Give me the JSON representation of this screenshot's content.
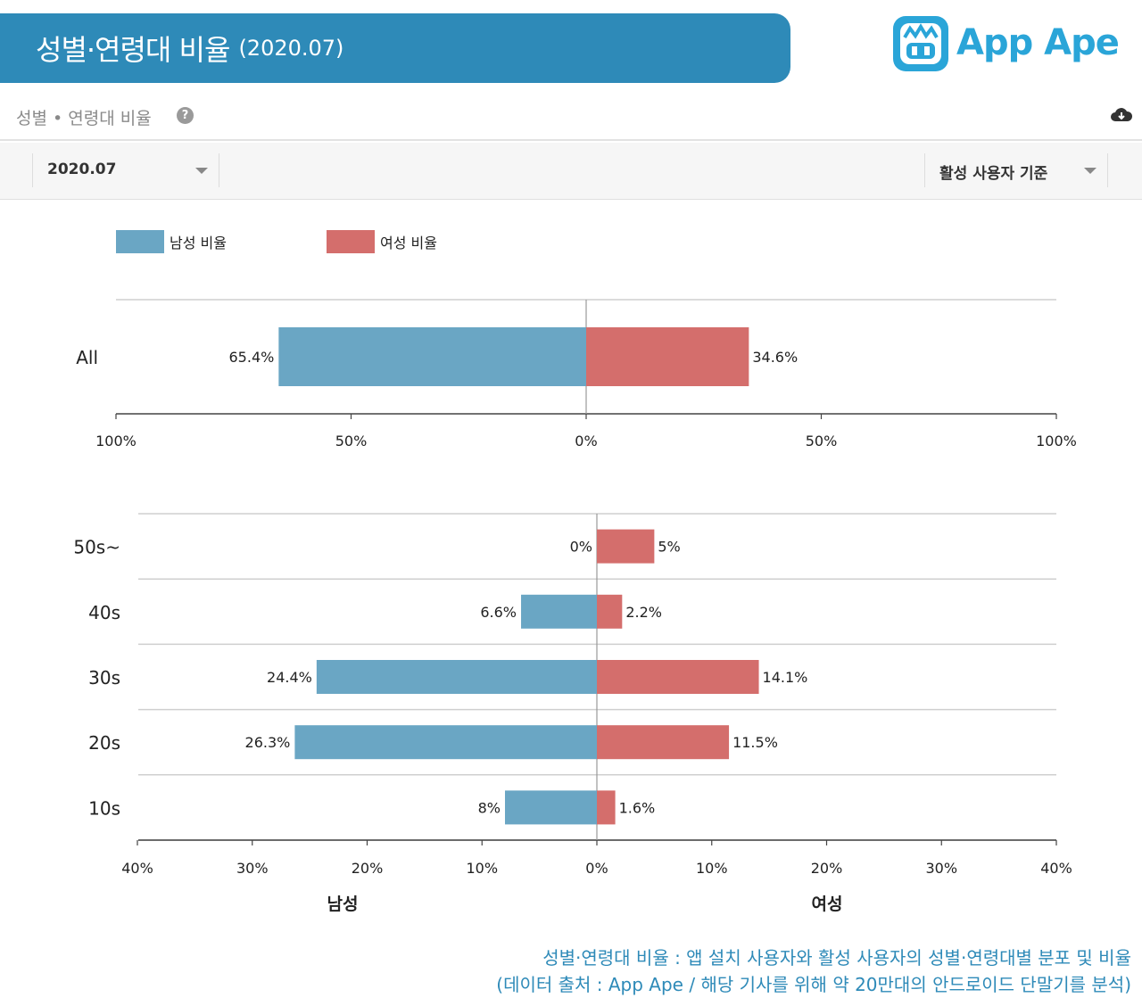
{
  "header": {
    "title": "성별·연령대 비율",
    "period": "(2020.07)"
  },
  "brand": {
    "name": "App Ape"
  },
  "section": {
    "label": "성별 • 연령대 비율",
    "help_icon": "question-circle-icon",
    "download_icon": "cloud-download-icon"
  },
  "filters": {
    "month": "2020.07",
    "basis": "활성 사용자 기준"
  },
  "legend": {
    "male": "남성 비율",
    "female": "여성 비율"
  },
  "colors": {
    "male": "#6aa6c4",
    "female": "#d46e6c",
    "accent": "#2e8ab8"
  },
  "chart_data": [
    {
      "type": "bar",
      "orientation": "horizontal-diverging",
      "categories": [
        "All"
      ],
      "series": [
        {
          "name": "남성 비율",
          "values": [
            65.4
          ],
          "labels": [
            "65.4%"
          ]
        },
        {
          "name": "여성 비율",
          "values": [
            34.6
          ],
          "labels": [
            "34.6%"
          ]
        }
      ],
      "xlim": [
        -100,
        100
      ],
      "ticks": [
        -100,
        -50,
        0,
        50,
        100
      ],
      "tick_labels": [
        "100%",
        "50%",
        "0%",
        "50%",
        "100%"
      ]
    },
    {
      "type": "bar",
      "orientation": "horizontal-diverging",
      "categories": [
        "50s~",
        "40s",
        "30s",
        "20s",
        "10s"
      ],
      "series": [
        {
          "name": "남성 비율",
          "values": [
            0,
            6.6,
            24.4,
            26.3,
            8
          ],
          "labels": [
            "0%",
            "6.6%",
            "24.4%",
            "26.3%",
            "8%"
          ]
        },
        {
          "name": "여성 비율",
          "values": [
            5,
            2.2,
            14.1,
            11.5,
            1.6
          ],
          "labels": [
            "5%",
            "2.2%",
            "14.1%",
            "11.5%",
            "1.6%"
          ]
        }
      ],
      "xlim": [
        -40,
        40
      ],
      "ticks": [
        -40,
        -30,
        -20,
        -10,
        0,
        10,
        20,
        30,
        40
      ],
      "tick_labels": [
        "40%",
        "30%",
        "20%",
        "10%",
        "0%",
        "10%",
        "20%",
        "30%",
        "40%"
      ],
      "xlabel_left": "남성",
      "xlabel_right": "여성"
    }
  ],
  "footnote": {
    "line1": "성별·연령대 비율 : 앱 설치 사용자와 활성 사용자의 성별·연령대별 분포 및 비율",
    "line2": "(데이터 출처 : App Ape / 해당 기사를 위해 약 20만대의 안드로이드 단말기를 분석)"
  }
}
